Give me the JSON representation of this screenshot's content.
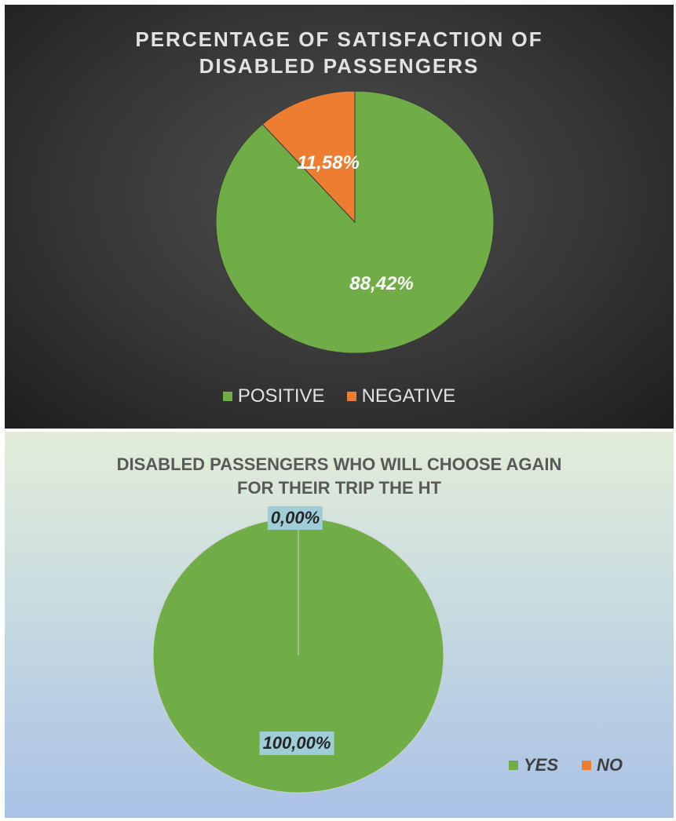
{
  "chart_data": [
    {
      "type": "pie",
      "title": "PERCENTAGE OF SATISFACTION OF\nDISABLED PASSENGERS",
      "categories": [
        "POSITIVE",
        "NEGATIVE"
      ],
      "values": [
        88.42,
        11.58
      ],
      "data_labels": [
        "88,42%",
        "11,58%"
      ],
      "colors": [
        "#70ad47",
        "#ed7d31"
      ],
      "legend_position": "bottom"
    },
    {
      "type": "pie",
      "title": "DISABLED PASSENGERS WHO WILL CHOOSE AGAIN\nFOR THEIR TRIP THE HT",
      "categories": [
        "YES",
        "NO"
      ],
      "values": [
        100.0,
        0.0
      ],
      "data_labels": [
        "100,00%",
        "0,00%"
      ],
      "colors": [
        "#70ad47",
        "#ed7d31"
      ],
      "legend_position": "bottom-right"
    }
  ]
}
